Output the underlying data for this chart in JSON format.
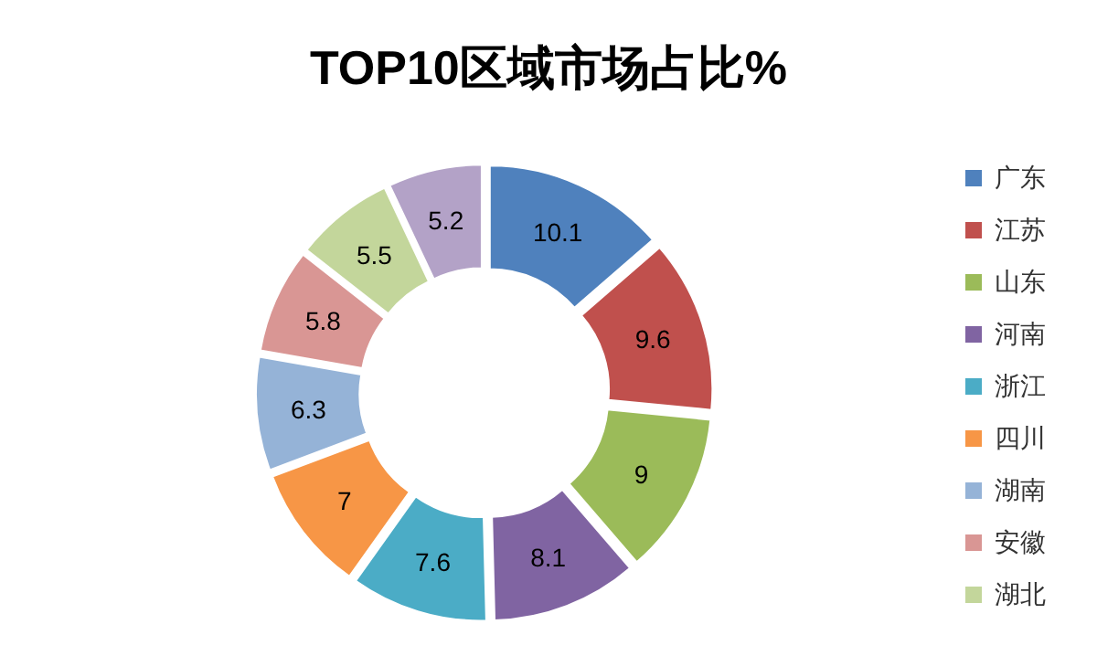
{
  "chart_data": {
    "type": "donut",
    "title": "TOP10区域市场占比%",
    "categories": [
      "广东",
      "江苏",
      "山东",
      "河南",
      "浙江",
      "四川",
      "湖南",
      "安徽",
      "湖北",
      null
    ],
    "values": [
      10.1,
      9.6,
      9,
      8.1,
      7.6,
      7,
      6.3,
      5.8,
      5.5,
      5.2
    ],
    "colors": [
      "#4f81bd",
      "#c0504d",
      "#9bbb59",
      "#8064a2",
      "#4bacc6",
      "#f79646",
      "#95b3d7",
      "#d99694",
      "#c3d69b",
      "#b3a2c7"
    ],
    "data_labels": true,
    "legend": "right"
  }
}
